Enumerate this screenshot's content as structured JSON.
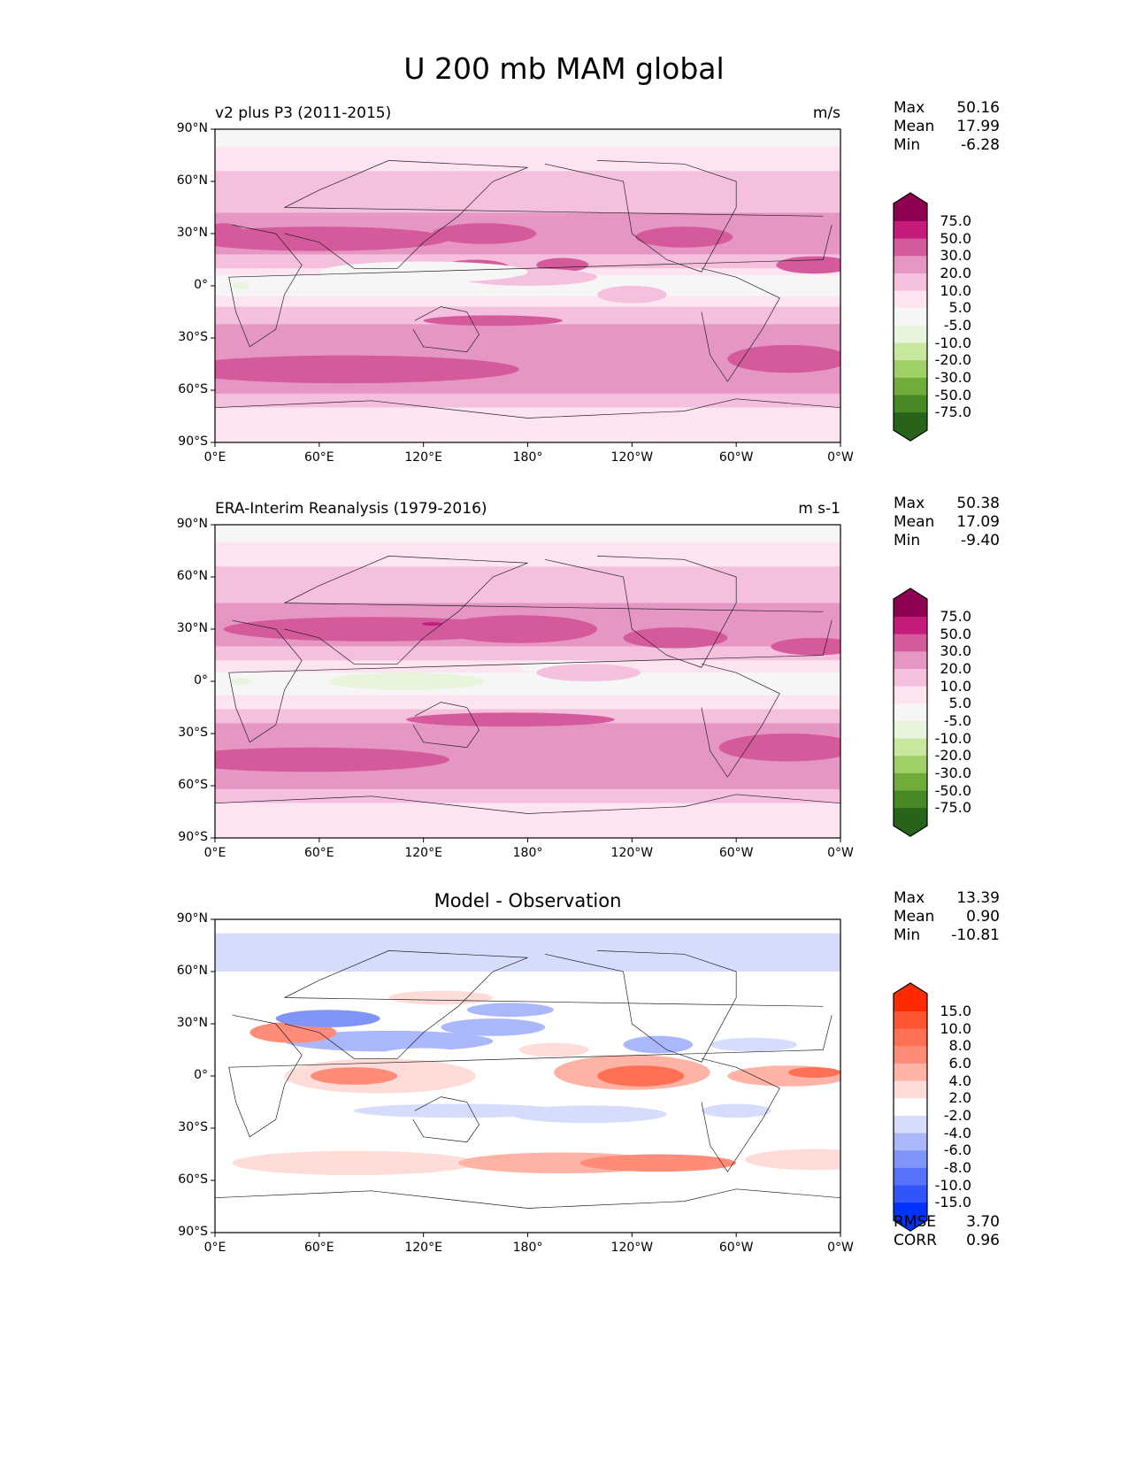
{
  "chart_data": {
    "type": "heatmap",
    "title": "U 200 mb MAM global",
    "lat_ticks": [
      "90°N",
      "60°N",
      "30°N",
      "0°",
      "30°S",
      "60°S",
      "90°S"
    ],
    "lon_ticks": [
      "0°E",
      "60°E",
      "120°E",
      "180°",
      "120°W",
      "60°W",
      "0°W"
    ],
    "panels": [
      {
        "title_left": "v2 plus P3 (2011-2015)",
        "title_right": "m/s",
        "stats": {
          "max_label": "Max",
          "max": "50.16",
          "mean_label": "Mean",
          "mean": "17.99",
          "min_label": "Min",
          "min": "-6.28"
        },
        "colorbar_levels": [
          "75.0",
          "50.0",
          "30.0",
          "20.0",
          "10.0",
          "5.0",
          "-5.0",
          "-10.0",
          "-20.0",
          "-30.0",
          "-50.0",
          "-75.0"
        ]
      },
      {
        "title_left": "ERA-Interim Reanalysis (1979-2016)",
        "title_right": "m s-1",
        "stats": {
          "max_label": "Max",
          "max": "50.38",
          "mean_label": "Mean",
          "mean": "17.09",
          "min_label": "Min",
          "min": "-9.40"
        },
        "colorbar_levels": [
          "75.0",
          "50.0",
          "30.0",
          "20.0",
          "10.0",
          "5.0",
          "-5.0",
          "-10.0",
          "-20.0",
          "-30.0",
          "-50.0",
          "-75.0"
        ]
      },
      {
        "title_center": "Model - Observation",
        "stats": {
          "max_label": "Max",
          "max": "13.39",
          "mean_label": "Mean",
          "mean": "0.90",
          "min_label": "Min",
          "min": "-10.81",
          "rmse_label": "RMSE",
          "rmse": "3.70",
          "corr_label": "CORR",
          "corr": "0.96"
        },
        "colorbar_levels": [
          "15.0",
          "10.0",
          "8.0",
          "6.0",
          "4.0",
          "2.0",
          "-2.0",
          "-4.0",
          "-6.0",
          "-8.0",
          "-10.0",
          "-15.0"
        ]
      }
    ],
    "colormaps": {
      "piyg": [
        "#8e0152",
        "#c51b7d",
        "#d55a9c",
        "#e696c3",
        "#f5c0de",
        "#fce4f0",
        "#f6f6f6",
        "#e9f4dc",
        "#c8e8a0",
        "#9ed068",
        "#6fac3a",
        "#478a25",
        "#27641a"
      ],
      "diff": [
        "#ff2a00",
        "#ff5533",
        "#ff7055",
        "#ff8c78",
        "#ffb3a5",
        "#ffdcd8",
        "#ffffff",
        "#d6dcfc",
        "#aab7fb",
        "#7f95fa",
        "#5772fb",
        "#3255fb",
        "#0033ff"
      ]
    }
  }
}
